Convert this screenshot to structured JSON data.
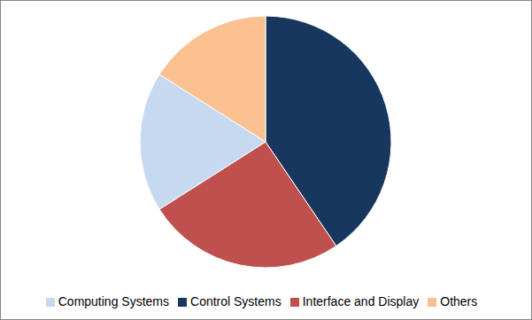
{
  "chart_data": {
    "type": "pie",
    "categories": [
      "Control Systems",
      "Interface and Display",
      "Computing Systems",
      "Others"
    ],
    "values": [
      40.5,
      25.5,
      18,
      16
    ],
    "colors": [
      "#17375e",
      "#c0504d",
      "#c6d9f1",
      "#fac090"
    ],
    "legend": "bottom"
  }
}
